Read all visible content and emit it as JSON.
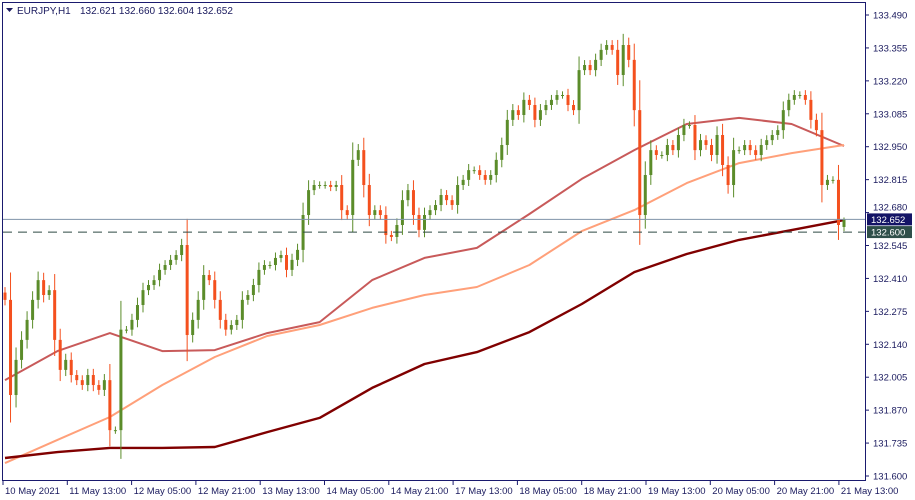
{
  "header": {
    "symbol": "EURJPY,H1",
    "ohlc": "132.621 132.660 132.604 132.652"
  },
  "colors": {
    "bull": "#5b8c2a",
    "bear": "#f4501e",
    "ma_fast": "#c85a5a",
    "ma_mid": "#ffa07a",
    "ma_slow": "#800000",
    "frame": "#1a1a6e",
    "bid_line": "#7f93a8",
    "bid_tag": "#141466",
    "level_line": "#2f4a44",
    "level_tag": "#2f4f4a"
  },
  "chart_data": {
    "type": "candlestick",
    "ylim": [
      131.6,
      133.49
    ],
    "y_ticks": [
      "133.490",
      "133.355",
      "133.220",
      "133.085",
      "132.950",
      "132.815",
      "132.680",
      "132.545",
      "132.410",
      "132.275",
      "132.140",
      "132.005",
      "131.870",
      "131.735",
      "131.600"
    ],
    "x_ticks": [
      "10 May 2021",
      "11 May 13:00",
      "12 May 05:00",
      "12 May 21:00",
      "13 May 13:00",
      "14 May 05:00",
      "14 May 21:00",
      "17 May 13:00",
      "18 May 05:00",
      "18 May 21:00",
      "19 May 13:00",
      "20 May 05:00",
      "20 May 21:00",
      "21 May 13:00"
    ],
    "closes": [
      132.322,
      131.932,
      132.076,
      132.158,
      132.24,
      132.322,
      132.403,
      132.342,
      132.362,
      132.158,
      132.035,
      132.076,
      132.014,
      131.993,
      131.973,
      132.014,
      131.973,
      131.953,
      131.993,
      131.788,
      131.788,
      132.2,
      132.2,
      132.24,
      132.301,
      132.362,
      132.383,
      132.403,
      132.445,
      132.465,
      132.486,
      132.506,
      132.547,
      132.178,
      132.24,
      132.322,
      132.424,
      132.403,
      132.322,
      132.24,
      132.2,
      132.219,
      132.24,
      132.322,
      132.342,
      132.383,
      132.445,
      132.465,
      132.465,
      132.494,
      132.506,
      132.445,
      132.486,
      132.527,
      132.67,
      132.772,
      132.793,
      132.793,
      132.793,
      132.785,
      132.793,
      132.69,
      132.67,
      132.896,
      132.936,
      132.793,
      132.67,
      132.69,
      132.67,
      132.588,
      132.58,
      132.629,
      132.731,
      132.772,
      132.67,
      132.609,
      132.67,
      132.69,
      132.711,
      132.752,
      132.731,
      132.711,
      132.793,
      132.814,
      132.854,
      132.854,
      132.834,
      132.814,
      132.834,
      132.896,
      132.957,
      133.06,
      133.1,
      133.08,
      133.142,
      133.121,
      133.06,
      133.1,
      133.121,
      133.142,
      133.162,
      133.162,
      133.121,
      133.1,
      133.264,
      133.285,
      133.264,
      133.306,
      133.347,
      133.367,
      133.347,
      133.244,
      133.367,
      133.306,
      133.1,
      132.67,
      132.834,
      132.936,
      132.916,
      132.916,
      132.957,
      132.936,
      132.998,
      133.039,
      133.039,
      132.936,
      132.977,
      132.957,
      132.916,
      132.998,
      132.875,
      132.793,
      132.936,
      132.936,
      132.957,
      132.936,
      132.916,
      132.957,
      132.977,
      132.998,
      133.018,
      133.1,
      133.142,
      133.162,
      133.162,
      133.142,
      133.06,
      133.018,
      132.793,
      132.814,
      132.814,
      132.629,
      132.652
    ],
    "last_bar": {
      "open": 132.621,
      "high": 132.66,
      "low": 132.604,
      "close": 132.652
    },
    "moving_averages": [
      {
        "color_key": "ma_fast",
        "values": [
          131.993,
          132.112,
          132.186,
          132.112,
          132.116,
          132.186,
          132.231,
          132.403,
          132.494,
          132.535,
          132.674,
          132.818,
          132.936,
          133.043,
          133.068,
          133.043,
          132.953
        ]
      },
      {
        "color_key": "ma_mid",
        "values": [
          131.653,
          131.748,
          131.842,
          131.973,
          132.088,
          132.174,
          132.219,
          132.289,
          132.342,
          132.375,
          132.465,
          132.604,
          132.69,
          132.801,
          132.883,
          132.924,
          132.957
        ]
      },
      {
        "color_key": "ma_slow",
        "values": [
          131.674,
          131.698,
          131.715,
          131.715,
          131.719,
          131.78,
          131.838,
          131.961,
          132.059,
          132.108,
          132.19,
          132.305,
          132.436,
          132.51,
          132.568,
          132.608,
          132.649
        ]
      }
    ],
    "bid_price": "132.652",
    "level_price": "132.600",
    "grid": false
  }
}
